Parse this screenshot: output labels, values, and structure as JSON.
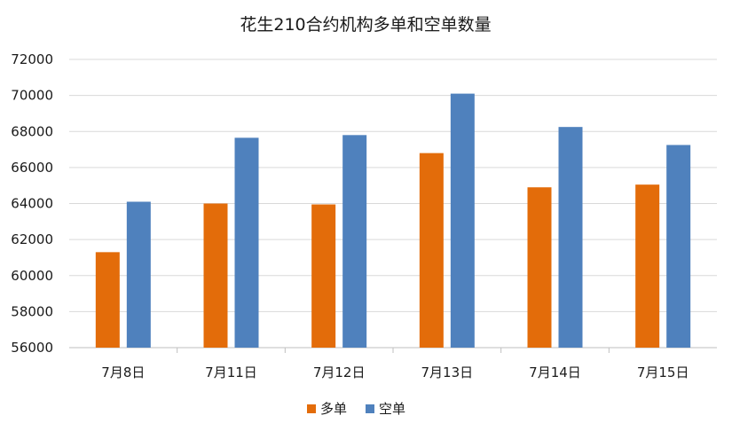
{
  "chart_data": {
    "type": "bar",
    "title": "花生210合约机构多单和空单数量",
    "categories": [
      "7月8日",
      "7月11日",
      "7月12日",
      "7月13日",
      "7月14日",
      "7月15日"
    ],
    "series": [
      {
        "name": "多单",
        "color": "#E36C0A",
        "values": [
          61300,
          64000,
          63950,
          66800,
          64900,
          65050
        ]
      },
      {
        "name": "空单",
        "color": "#4F81BD",
        "values": [
          64100,
          67650,
          67800,
          70100,
          68250,
          67250
        ]
      }
    ],
    "ylim": [
      56000,
      72000
    ],
    "yticks": [
      56000,
      58000,
      60000,
      62000,
      64000,
      66000,
      68000,
      70000,
      72000
    ],
    "xlabel": "",
    "ylabel": "",
    "grid": true,
    "legend": "bottom"
  }
}
